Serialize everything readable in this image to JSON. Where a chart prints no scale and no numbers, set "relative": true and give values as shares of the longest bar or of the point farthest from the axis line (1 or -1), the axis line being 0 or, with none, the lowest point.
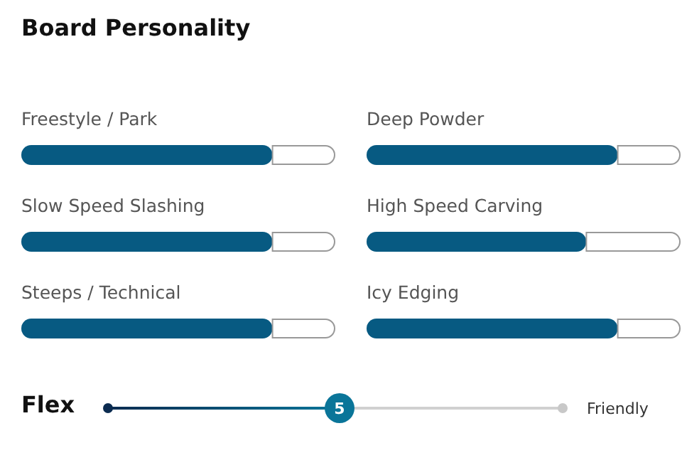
{
  "chart_data": [
    {
      "type": "bar",
      "orientation": "horizontal",
      "relative": true,
      "stacked": true,
      "title": "Board Personality",
      "categories": [
        "Freestyle / Park",
        "Slow Speed Slashing",
        "Steeps / Technical"
      ],
      "series": [
        {
          "color": "#075a82",
          "values": [
            0.8,
            0.8,
            0.8
          ]
        },
        {
          "color": "#ffffff",
          "values": [
            0.2,
            0.2,
            0.2
          ]
        }
      ]
    },
    {
      "type": "bar",
      "orientation": "horizontal",
      "relative": true,
      "stacked": true,
      "categories": [
        "Deep Powder",
        "High Speed Carving",
        "Icy Edging"
      ],
      "series": [
        {
          "color": "#075a82",
          "values": [
            0.8,
            0.7,
            0.8
          ]
        },
        {
          "color": "#ffffff",
          "values": [
            0.2,
            0.3,
            0.2
          ]
        }
      ]
    },
    {
      "type": "other",
      "title": "Flex",
      "annotations": [
        "5",
        "Friendly"
      ]
    }
  ]
}
